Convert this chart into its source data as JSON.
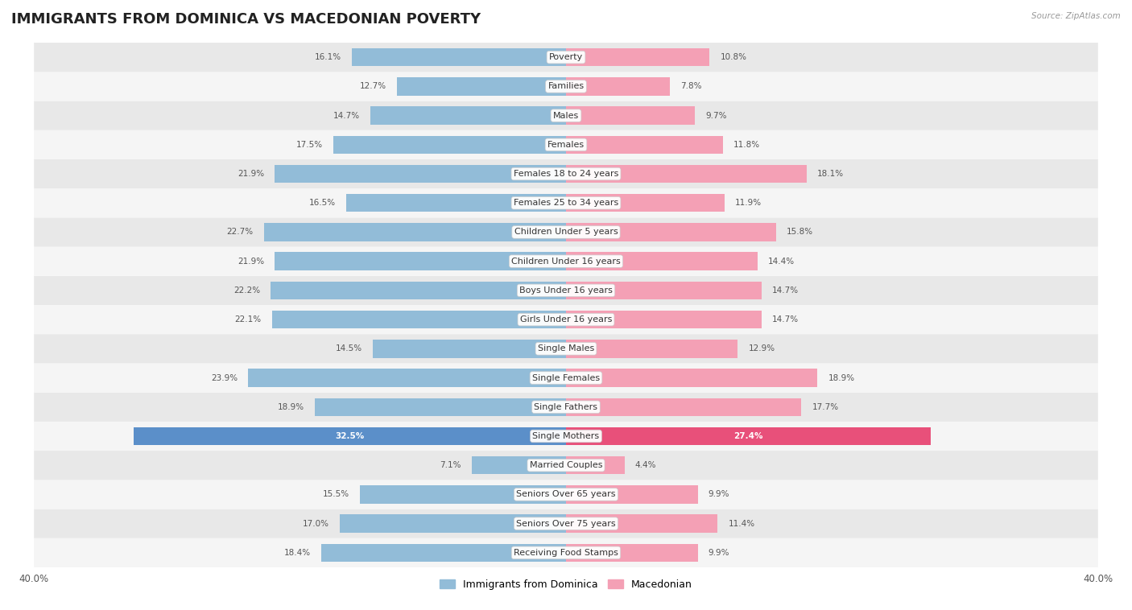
{
  "title": "IMMIGRANTS FROM DOMINICA VS MACEDONIAN POVERTY",
  "source": "Source: ZipAtlas.com",
  "categories": [
    "Poverty",
    "Families",
    "Males",
    "Females",
    "Females 18 to 24 years",
    "Females 25 to 34 years",
    "Children Under 5 years",
    "Children Under 16 years",
    "Boys Under 16 years",
    "Girls Under 16 years",
    "Single Males",
    "Single Females",
    "Single Fathers",
    "Single Mothers",
    "Married Couples",
    "Seniors Over 65 years",
    "Seniors Over 75 years",
    "Receiving Food Stamps"
  ],
  "left_values": [
    16.1,
    12.7,
    14.7,
    17.5,
    21.9,
    16.5,
    22.7,
    21.9,
    22.2,
    22.1,
    14.5,
    23.9,
    18.9,
    32.5,
    7.1,
    15.5,
    17.0,
    18.4
  ],
  "right_values": [
    10.8,
    7.8,
    9.7,
    11.8,
    18.1,
    11.9,
    15.8,
    14.4,
    14.7,
    14.7,
    12.9,
    18.9,
    17.7,
    27.4,
    4.4,
    9.9,
    11.4,
    9.9
  ],
  "left_color": "#92bcd8",
  "right_color": "#f4a0b5",
  "left_label": "Immigrants from Dominica",
  "right_label": "Macedonian",
  "axis_max": 40.0,
  "background_color": "#ffffff",
  "row_bg_odd": "#f5f5f5",
  "row_bg_even": "#e8e8e8",
  "title_fontsize": 13,
  "label_fontsize": 8.0,
  "value_fontsize": 7.5,
  "highlight_left_color": "#5b8fc9",
  "highlight_right_color": "#e8507a",
  "highlight_rows": [
    13
  ]
}
